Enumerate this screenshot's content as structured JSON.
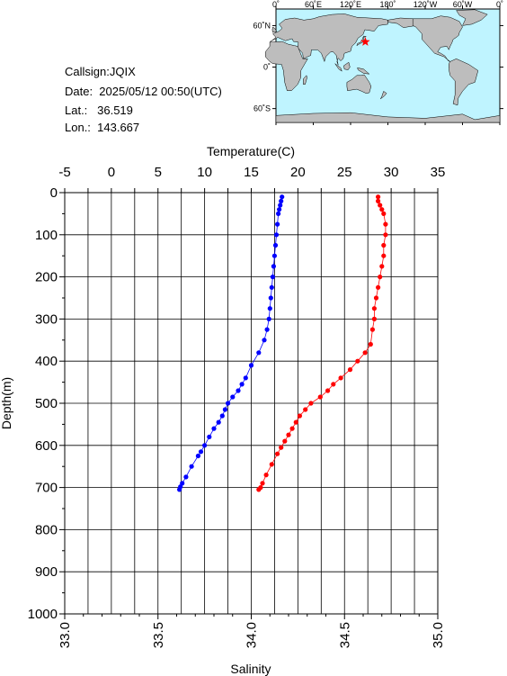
{
  "info": {
    "callsign": "Callsign:JQIX",
    "date": "Date:  2025/05/12 00:50(UTC)",
    "lat": "Lat.:   36.519",
    "lon": "Lon.:  143.667"
  },
  "map": {
    "top_labels": [
      "0˚",
      "60˚E",
      "120˚E",
      "180˚",
      "120˚W",
      "60˚W",
      "0˚"
    ],
    "left_labels": [
      "60˚N",
      "0˚",
      "60˚S"
    ],
    "colors": {
      "ocean": "#bff4ff",
      "land": "#bdbdbd",
      "marker": "#ff0000"
    },
    "marker_lat": 36.519,
    "marker_lon": 143.667
  },
  "chart_data": {
    "type": "scatter",
    "ylabel": "Depth(m)",
    "ylim": [
      0,
      1000
    ],
    "yticks": [
      "0",
      "100",
      "200",
      "300",
      "400",
      "500",
      "600",
      "700",
      "800",
      "900",
      "1000"
    ],
    "top_axis": {
      "label": "Temperature(C)",
      "lim": [
        -5,
        35
      ],
      "ticks": [
        "-5",
        "0",
        "5",
        "10",
        "15",
        "20",
        "25",
        "30",
        "35"
      ]
    },
    "bottom_axis": {
      "label": "Salinity",
      "lim": [
        33.0,
        35.0
      ],
      "ticks": [
        "33.0",
        "33.5",
        "34.0",
        "34.5",
        "35.0"
      ]
    },
    "grid": true,
    "series": [
      {
        "axis": "top",
        "color": "#0000ff",
        "points": [
          [
            18.3,
            10
          ],
          [
            18.2,
            20
          ],
          [
            18.1,
            30
          ],
          [
            18.0,
            40
          ],
          [
            17.9,
            50
          ],
          [
            17.8,
            75
          ],
          [
            17.7,
            100
          ],
          [
            17.6,
            125
          ],
          [
            17.5,
            150
          ],
          [
            17.4,
            175
          ],
          [
            17.3,
            200
          ],
          [
            17.2,
            225
          ],
          [
            17.1,
            250
          ],
          [
            17.0,
            275
          ],
          [
            16.9,
            300
          ],
          [
            16.7,
            325
          ],
          [
            16.4,
            350
          ],
          [
            15.8,
            380
          ],
          [
            15.0,
            410
          ],
          [
            14.4,
            440
          ],
          [
            14.0,
            455
          ],
          [
            13.6,
            470
          ],
          [
            13.0,
            485
          ],
          [
            12.5,
            500
          ],
          [
            12.2,
            515
          ],
          [
            11.9,
            530
          ],
          [
            11.5,
            545
          ],
          [
            11.0,
            560
          ],
          [
            10.5,
            580
          ],
          [
            10.0,
            600
          ],
          [
            9.6,
            615
          ],
          [
            9.3,
            625
          ],
          [
            8.6,
            650
          ],
          [
            8.0,
            675
          ],
          [
            7.6,
            690
          ],
          [
            7.4,
            698
          ],
          [
            7.3,
            705
          ]
        ]
      },
      {
        "axis": "bottom",
        "color": "#ff0000",
        "points": [
          [
            34.68,
            10
          ],
          [
            34.68,
            20
          ],
          [
            34.69,
            30
          ],
          [
            34.7,
            40
          ],
          [
            34.71,
            50
          ],
          [
            34.72,
            75
          ],
          [
            34.72,
            100
          ],
          [
            34.71,
            125
          ],
          [
            34.71,
            150
          ],
          [
            34.7,
            175
          ],
          [
            34.69,
            200
          ],
          [
            34.68,
            225
          ],
          [
            34.67,
            250
          ],
          [
            34.66,
            275
          ],
          [
            34.66,
            300
          ],
          [
            34.65,
            325
          ],
          [
            34.64,
            360
          ],
          [
            34.61,
            380
          ],
          [
            34.57,
            400
          ],
          [
            34.53,
            420
          ],
          [
            34.48,
            440
          ],
          [
            34.44,
            455
          ],
          [
            34.41,
            470
          ],
          [
            34.37,
            485
          ],
          [
            34.32,
            500
          ],
          [
            34.29,
            515
          ],
          [
            34.26,
            530
          ],
          [
            34.24,
            545
          ],
          [
            34.22,
            560
          ],
          [
            34.2,
            575
          ],
          [
            34.18,
            590
          ],
          [
            34.16,
            605
          ],
          [
            34.14,
            620
          ],
          [
            34.11,
            645
          ],
          [
            34.08,
            670
          ],
          [
            34.06,
            690
          ],
          [
            34.05,
            700
          ],
          [
            34.04,
            705
          ]
        ]
      }
    ]
  }
}
